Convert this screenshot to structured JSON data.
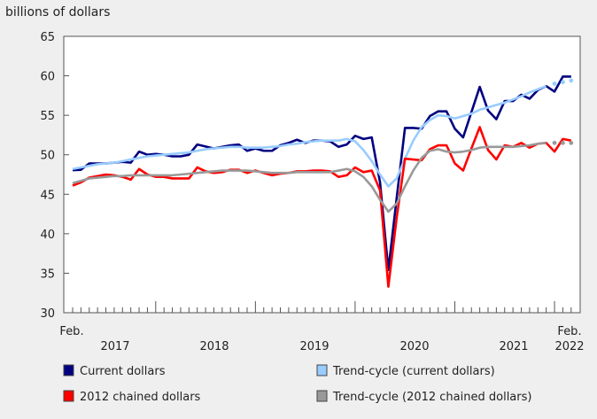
{
  "chart_data": {
    "type": "line",
    "ylabel": "billions of dollars",
    "ylim": [
      30,
      65
    ],
    "yticks": [
      30,
      35,
      40,
      45,
      50,
      55,
      60,
      65
    ],
    "x_start": "Feb. 2017",
    "x_end": "Feb. 2022",
    "x_frequency": "monthly",
    "x_edge_labels": {
      "start": "Feb.",
      "end": "Feb."
    },
    "year_labels": [
      "2017",
      "2018",
      "2019",
      "2020",
      "2021",
      "2022"
    ],
    "grid": false,
    "legend_placement": "bottom",
    "series": [
      {
        "name": "Current dollars",
        "color": "#000080",
        "style": "solid",
        "values": [
          48.05,
          48.1,
          48.9,
          48.9,
          48.9,
          49.0,
          49.1,
          49.0,
          50.4,
          50.0,
          50.1,
          50.0,
          49.8,
          49.8,
          50.0,
          51.3,
          51.05,
          50.8,
          51.0,
          51.2,
          51.3,
          50.5,
          50.8,
          50.5,
          50.5,
          51.2,
          51.5,
          51.9,
          51.5,
          51.8,
          51.8,
          51.7,
          51.0,
          51.3,
          52.4,
          52.0,
          52.2,
          46.5,
          35.4,
          44.5,
          53.4,
          53.4,
          53.3,
          54.9,
          55.5,
          55.5,
          53.3,
          52.2,
          55.4,
          58.6,
          55.6,
          54.5,
          56.8,
          56.8,
          57.6,
          57.1,
          58.2,
          58.7,
          58.0,
          59.9,
          59.9
        ]
      },
      {
        "name": "Trend-cycle (current dollars)",
        "color": "#99ccff",
        "style": "solid",
        "projected_last_points": 3,
        "values": [
          48.2,
          48.4,
          48.6,
          48.8,
          48.9,
          49.0,
          49.2,
          49.4,
          49.6,
          49.8,
          49.9,
          50.0,
          50.1,
          50.2,
          50.3,
          50.5,
          50.7,
          50.8,
          50.9,
          51.0,
          51.0,
          50.9,
          50.9,
          50.9,
          51.0,
          51.1,
          51.3,
          51.4,
          51.6,
          51.7,
          51.8,
          51.8,
          51.8,
          52.0,
          51.7,
          50.6,
          49.2,
          47.5,
          46.0,
          47.0,
          49.5,
          51.8,
          53.5,
          54.4,
          55.0,
          54.9,
          54.6,
          54.9,
          55.2,
          55.7,
          56.0,
          56.3,
          56.6,
          57.0,
          57.4,
          57.9,
          58.3,
          58.7,
          59.0,
          59.2,
          59.4
        ]
      },
      {
        "name": "2012 chained dollars",
        "color": "#ff0000",
        "style": "solid",
        "values": [
          46.1,
          46.5,
          47.1,
          47.3,
          47.5,
          47.4,
          47.2,
          46.85,
          48.2,
          47.5,
          47.2,
          47.2,
          47.0,
          47.0,
          47.0,
          48.4,
          47.9,
          47.7,
          47.8,
          48.1,
          48.1,
          47.7,
          48.0,
          47.7,
          47.4,
          47.6,
          47.7,
          47.9,
          47.9,
          48.0,
          48.0,
          47.9,
          47.2,
          47.4,
          48.4,
          47.8,
          48.0,
          45.5,
          33.3,
          42.0,
          49.5,
          49.4,
          49.3,
          50.7,
          51.2,
          51.2,
          48.9,
          48.0,
          50.8,
          53.5,
          50.6,
          49.4,
          51.2,
          51.0,
          51.5,
          50.9,
          51.4,
          51.5,
          50.4,
          52.0,
          51.8
        ]
      },
      {
        "name": "Trend-cycle (2012 chained dollars)",
        "color": "#999999",
        "style": "solid",
        "projected_last_points": 3,
        "values": [
          46.4,
          46.7,
          47.0,
          47.1,
          47.2,
          47.3,
          47.3,
          47.4,
          47.4,
          47.4,
          47.4,
          47.4,
          47.4,
          47.5,
          47.6,
          47.7,
          47.8,
          47.9,
          48.0,
          48.0,
          48.0,
          48.0,
          47.9,
          47.8,
          47.7,
          47.7,
          47.7,
          47.8,
          47.8,
          47.8,
          47.8,
          47.8,
          48.0,
          48.2,
          47.9,
          47.2,
          46.0,
          44.3,
          42.8,
          43.8,
          46.0,
          48.0,
          49.6,
          50.5,
          50.7,
          50.4,
          50.3,
          50.4,
          50.6,
          50.9,
          51.0,
          51.0,
          51.0,
          51.0,
          51.1,
          51.2,
          51.4,
          51.5,
          51.5,
          51.5,
          51.5
        ]
      }
    ]
  }
}
